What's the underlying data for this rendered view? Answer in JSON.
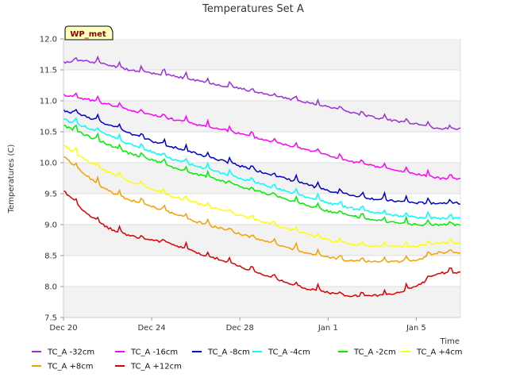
{
  "chart_data": {
    "type": "line",
    "title": "Temperatures Set A",
    "xlabel": "Time",
    "ylabel": "Temperatures (C)",
    "badge": "WP_met",
    "x_tick_labels": [
      "Dec 20",
      "Dec 24",
      "Dec 28",
      "Jan 1",
      "Jan 5"
    ],
    "y_tick_labels": [
      "7.5",
      "8.0",
      "8.5",
      "9.0",
      "9.5",
      "10.0",
      "10.5",
      "11.0",
      "11.5",
      "12.0"
    ],
    "ylim": [
      7.5,
      12.0
    ],
    "xlim_days": [
      0,
      18
    ],
    "x_day_ticks": [
      0,
      4,
      8,
      12,
      16
    ],
    "grid": "alternating horizontal bands",
    "legend_position": "bottom",
    "x_sample_days": [
      0,
      1,
      2,
      3,
      4,
      5,
      6,
      7,
      8,
      9,
      10,
      11,
      12,
      13,
      14,
      15,
      16,
      17
    ],
    "series": [
      {
        "name": "TC_A -32cm",
        "color": "#9b30d9",
        "values": [
          11.62,
          11.65,
          11.58,
          11.5,
          11.45,
          11.4,
          11.33,
          11.26,
          11.2,
          11.12,
          11.05,
          10.98,
          10.9,
          10.82,
          10.74,
          10.68,
          10.62,
          10.55
        ]
      },
      {
        "name": "TC_A -16cm",
        "color": "#ff00ff",
        "values": [
          11.1,
          11.03,
          10.95,
          10.85,
          10.77,
          10.7,
          10.62,
          10.55,
          10.47,
          10.38,
          10.3,
          10.22,
          10.12,
          10.02,
          9.95,
          9.88,
          9.82,
          9.75
        ]
      },
      {
        "name": "TC_A -8cm",
        "color": "#0000cc",
        "values": [
          10.85,
          10.75,
          10.62,
          10.48,
          10.35,
          10.25,
          10.15,
          10.05,
          9.95,
          9.85,
          9.75,
          9.65,
          9.55,
          9.48,
          9.42,
          9.38,
          9.35,
          9.35
        ]
      },
      {
        "name": "TC_A -4cm",
        "color": "#00ffff",
        "values": [
          10.7,
          10.58,
          10.45,
          10.3,
          10.18,
          10.05,
          9.95,
          9.85,
          9.75,
          9.65,
          9.55,
          9.45,
          9.35,
          9.27,
          9.2,
          9.15,
          9.12,
          9.1
        ]
      },
      {
        "name": "TC_A -2cm",
        "color": "#00ee00",
        "values": [
          10.6,
          10.45,
          10.3,
          10.15,
          10.05,
          9.92,
          9.82,
          9.72,
          9.62,
          9.52,
          9.42,
          9.32,
          9.22,
          9.15,
          9.08,
          9.03,
          9.0,
          9.0
        ]
      },
      {
        "name": "TC_A +4cm",
        "color": "#ffff00",
        "values": [
          10.28,
          10.05,
          9.85,
          9.7,
          9.58,
          9.45,
          9.35,
          9.25,
          9.15,
          9.05,
          8.95,
          8.85,
          8.75,
          8.68,
          8.65,
          8.65,
          8.65,
          8.7
        ]
      },
      {
        "name": "TC_A +8cm",
        "color": "#f5a000",
        "values": [
          10.1,
          9.8,
          9.55,
          9.4,
          9.3,
          9.18,
          9.05,
          8.95,
          8.85,
          8.75,
          8.65,
          8.55,
          8.47,
          8.42,
          8.4,
          8.4,
          8.42,
          8.55
        ]
      },
      {
        "name": "TC_A +12cm",
        "color": "#dd0000",
        "values": [
          9.55,
          9.2,
          8.95,
          8.82,
          8.75,
          8.68,
          8.55,
          8.45,
          8.32,
          8.2,
          8.08,
          7.97,
          7.9,
          7.85,
          7.85,
          7.88,
          8.0,
          8.22
        ]
      }
    ]
  }
}
